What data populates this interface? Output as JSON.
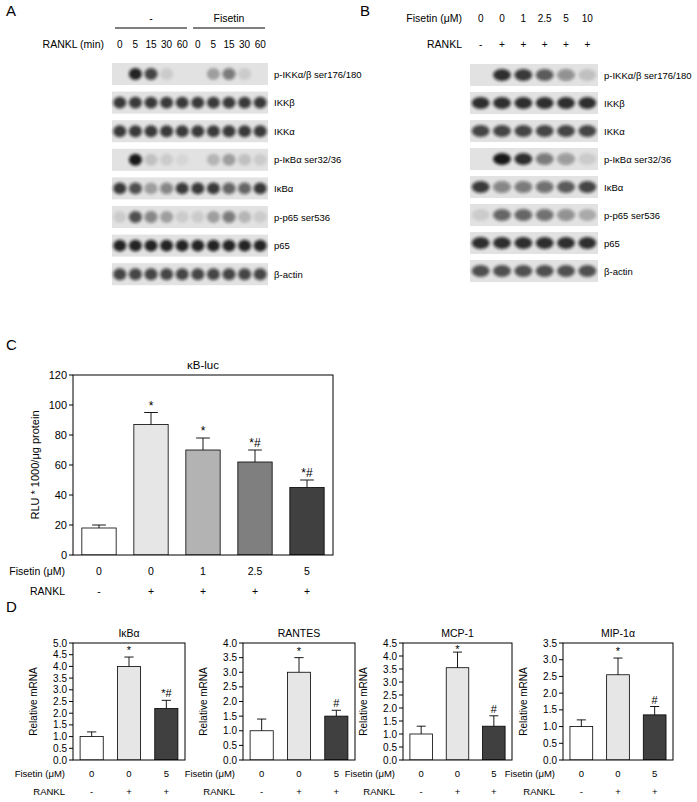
{
  "chart_data": [
    {
      "type": "blot",
      "panel": "A",
      "header_groups": [
        {
          "label": "-",
          "span": 5
        },
        {
          "label": "Fisetin",
          "span": 5
        }
      ],
      "lane_rows": [
        {
          "label": "RANKL (min)",
          "values": [
            "0",
            "5",
            "15",
            "30",
            "60",
            "0",
            "5",
            "15",
            "30",
            "60"
          ]
        }
      ],
      "rows": [
        {
          "label": "p-IKKα/β ser176/180",
          "intensity": [
            0,
            0.9,
            0.75,
            0.1,
            0,
            0,
            0.3,
            0.5,
            0.1,
            0
          ]
        },
        {
          "label": "IKKβ",
          "intensity": [
            0.8,
            0.8,
            0.8,
            0.8,
            0.8,
            0.8,
            0.8,
            0.8,
            0.8,
            0.8
          ]
        },
        {
          "label": "IKKα",
          "intensity": [
            0.8,
            0.8,
            0.8,
            0.8,
            0.8,
            0.8,
            0.8,
            0.8,
            0.8,
            0.8
          ]
        },
        {
          "label": "p-IκBα ser32/36",
          "intensity": [
            0,
            0.95,
            0.15,
            0.1,
            0.05,
            0,
            0.2,
            0.3,
            0.15,
            0.1
          ]
        },
        {
          "label": "IκBα",
          "intensity": [
            0.8,
            0.7,
            0.3,
            0.45,
            0.8,
            0.8,
            0.8,
            0.6,
            0.6,
            0.8
          ]
        },
        {
          "label": "p-p65 ser536",
          "intensity": [
            0.1,
            0.7,
            0.45,
            0.3,
            0.1,
            0.1,
            0.3,
            0.5,
            0.2,
            0.1
          ]
        },
        {
          "label": "p65",
          "intensity": [
            0.9,
            0.9,
            0.9,
            0.9,
            0.9,
            0.9,
            0.9,
            0.9,
            0.9,
            0.9
          ]
        },
        {
          "label": "β-actin",
          "intensity": [
            0.75,
            0.75,
            0.75,
            0.75,
            0.75,
            0.75,
            0.75,
            0.75,
            0.75,
            0.75
          ]
        }
      ]
    },
    {
      "type": "blot",
      "panel": "B",
      "lane_rows": [
        {
          "label": "Fisetin (μM)",
          "values": [
            "0",
            "0",
            "1",
            "2.5",
            "5",
            "10"
          ]
        },
        {
          "label": "RANKL",
          "values": [
            "-",
            "+",
            "+",
            "+",
            "+",
            "+"
          ]
        }
      ],
      "rows": [
        {
          "label": "p-IKKα/β ser176/180",
          "intensity": [
            0,
            0.85,
            0.8,
            0.65,
            0.4,
            0.15
          ]
        },
        {
          "label": "IKKβ",
          "intensity": [
            0.85,
            0.85,
            0.85,
            0.85,
            0.85,
            0.85
          ]
        },
        {
          "label": "IKKα",
          "intensity": [
            0.75,
            0.75,
            0.75,
            0.75,
            0.75,
            0.75
          ]
        },
        {
          "label": "p-IκBα ser32/36",
          "intensity": [
            0,
            0.95,
            0.85,
            0.5,
            0.35,
            0.1
          ]
        },
        {
          "label": "IκBα",
          "intensity": [
            0.8,
            0.45,
            0.5,
            0.55,
            0.65,
            0.75
          ]
        },
        {
          "label": "p-p65 ser536",
          "intensity": [
            0.1,
            0.6,
            0.6,
            0.55,
            0.4,
            0.25
          ]
        },
        {
          "label": "p65",
          "intensity": [
            0.85,
            0.85,
            0.85,
            0.85,
            0.85,
            0.85
          ]
        },
        {
          "label": "β-actin",
          "intensity": [
            0.7,
            0.7,
            0.7,
            0.7,
            0.7,
            0.7
          ]
        }
      ]
    },
    {
      "type": "bar",
      "panel": "C",
      "title": "κB-luc",
      "y_label": "RLU * 1000/μg protein",
      "values": [
        18,
        87,
        70,
        62,
        45
      ],
      "errors": [
        2,
        8,
        8,
        8,
        5
      ],
      "annotations": [
        null,
        "*",
        "*",
        "*#",
        "*#"
      ],
      "colors": [
        "#ffffff",
        "#e6e6e6",
        "#b3b3b3",
        "#7f7f7f",
        "#404040"
      ],
      "ylim": [
        0,
        120
      ],
      "yticks": [
        0,
        20,
        40,
        60,
        80,
        100,
        120
      ],
      "grid": false,
      "x_rows": [
        {
          "label": "Fisetin (μM)",
          "values": [
            "0",
            "0",
            "1",
            "2.5",
            "5"
          ]
        },
        {
          "label": "RANKL",
          "values": [
            "-",
            "+",
            "+",
            "+",
            "+"
          ]
        }
      ]
    },
    {
      "type": "bar",
      "panel": "D",
      "title": "IκBα",
      "y_label": "Relative mRNA",
      "values": [
        1.0,
        4.0,
        2.2
      ],
      "errors": [
        0.2,
        0.4,
        0.35
      ],
      "annotations": [
        null,
        "*",
        "*#"
      ],
      "colors": [
        "#ffffff",
        "#e6e6e6",
        "#404040"
      ],
      "ylim": [
        0,
        5
      ],
      "yticks": [
        {
          "value": 0,
          "label": "0.0"
        },
        0.5,
        {
          "value": 1,
          "label": "1.0"
        },
        1.5,
        {
          "value": 2,
          "label": "2.0"
        },
        2.5,
        {
          "value": 3,
          "label": "3.0"
        },
        3.5,
        {
          "value": 4,
          "label": "4.0"
        },
        4.5,
        {
          "value": 5,
          "label": "5.0"
        }
      ],
      "grid": false,
      "x_rows": [
        {
          "label": "Fisetin (μM)",
          "values": [
            "0",
            "0",
            "5"
          ]
        },
        {
          "label": "RANKL",
          "values": [
            "-",
            "+",
            "+"
          ]
        }
      ]
    },
    {
      "type": "bar",
      "title": "RANTES",
      "y_label": "Relative mRNA",
      "values": [
        1.0,
        3.0,
        1.5
      ],
      "errors": [
        0.4,
        0.5,
        0.2
      ],
      "annotations": [
        null,
        "*",
        "#"
      ],
      "colors": [
        "#ffffff",
        "#e6e6e6",
        "#404040"
      ],
      "ylim": [
        0,
        4
      ],
      "yticks": [
        {
          "value": 0,
          "label": "0.0"
        },
        0.5,
        {
          "value": 1,
          "label": "1.0"
        },
        1.5,
        {
          "value": 2,
          "label": "2.0"
        },
        2.5,
        {
          "value": 3,
          "label": "3.0"
        },
        3.5,
        {
          "value": 4,
          "label": "4.0"
        }
      ],
      "grid": false,
      "x_rows": [
        {
          "label": "Fisetin (μM)",
          "values": [
            "0",
            "0",
            "5"
          ]
        },
        {
          "label": "RANKL",
          "values": [
            "-",
            "+",
            "+"
          ]
        }
      ]
    },
    {
      "type": "bar",
      "title": "MCP-1",
      "y_label": "Relative mRNA",
      "values": [
        1.0,
        3.55,
        1.3
      ],
      "errors": [
        0.3,
        0.6,
        0.4
      ],
      "annotations": [
        null,
        "*",
        "#"
      ],
      "colors": [
        "#ffffff",
        "#e6e6e6",
        "#404040"
      ],
      "ylim": [
        0,
        4.5
      ],
      "yticks": [
        {
          "value": 0,
          "label": "0.0"
        },
        0.5,
        {
          "value": 1,
          "label": "1.0"
        },
        1.5,
        {
          "value": 2,
          "label": "2.0"
        },
        2.5,
        {
          "value": 3,
          "label": "3.0"
        },
        3.5,
        {
          "value": 4,
          "label": "4.0"
        },
        4.5
      ],
      "grid": false,
      "x_rows": [
        {
          "label": "Fisetin (μM)",
          "values": [
            "0",
            "0",
            "5"
          ]
        },
        {
          "label": "RANKL",
          "values": [
            "-",
            "+",
            "+"
          ]
        }
      ]
    },
    {
      "type": "bar",
      "title": "MIP-1α",
      "y_label": "Relative mRNA",
      "values": [
        1.0,
        2.55,
        1.35
      ],
      "errors": [
        0.2,
        0.5,
        0.25
      ],
      "annotations": [
        null,
        "*",
        "#"
      ],
      "colors": [
        "#ffffff",
        "#e6e6e6",
        "#404040"
      ],
      "ylim": [
        0,
        3.5
      ],
      "yticks": [
        {
          "value": 0,
          "label": "0.0"
        },
        0.5,
        {
          "value": 1,
          "label": "1.0"
        },
        1.5,
        {
          "value": 2,
          "label": "2.0"
        },
        2.5,
        {
          "value": 3,
          "label": "3.0"
        },
        3.5
      ],
      "grid": false,
      "x_rows": [
        {
          "label": "Fisetin (μM)",
          "values": [
            "0",
            "0",
            "5"
          ]
        },
        {
          "label": "RANKL",
          "values": [
            "-",
            "+",
            "+"
          ]
        }
      ]
    }
  ]
}
